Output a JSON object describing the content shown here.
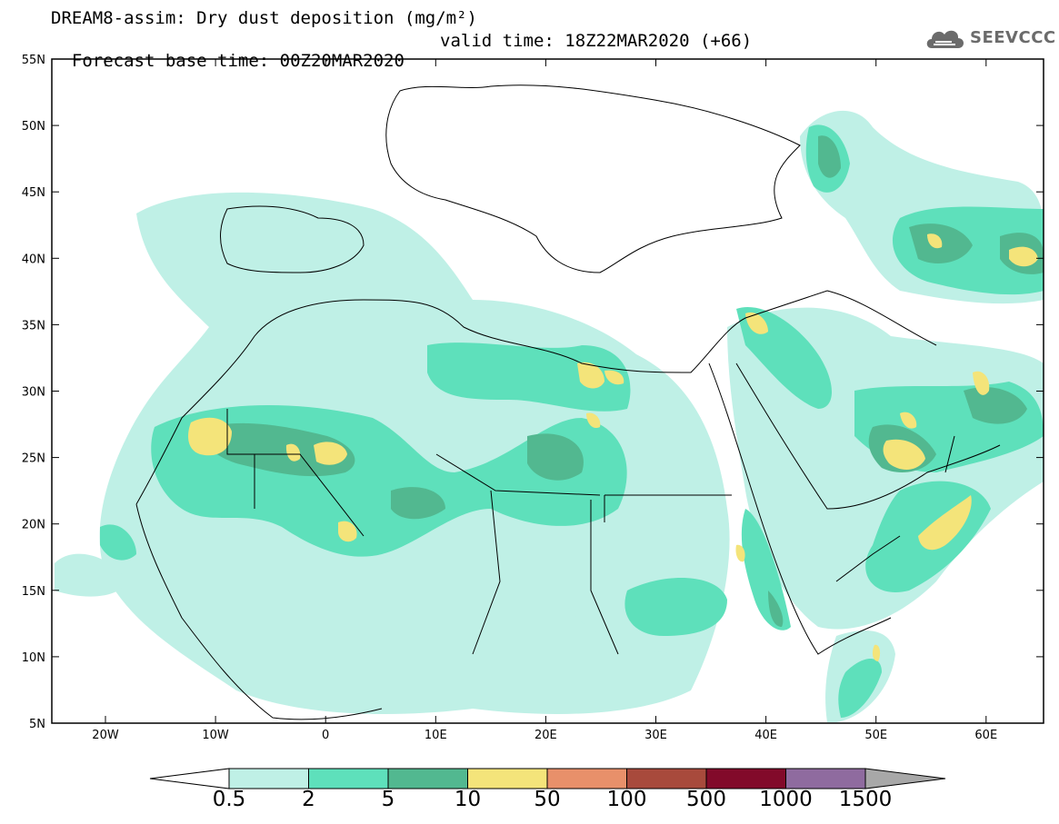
{
  "header": {
    "title_line1": "DREAM8-assim: Dry dust deposition (mg/m²)",
    "base_time": "Forecast base time: 00Z20MAR2020",
    "valid_time": "valid time: 18Z22MAR2020 (+66)"
  },
  "logo": {
    "text": "SEEVCCC",
    "icon": "cloud-icon"
  },
  "map": {
    "lat_labels": [
      "55N",
      "50N",
      "45N",
      "40N",
      "35N",
      "30N",
      "25N",
      "20N",
      "15N",
      "10N",
      "5N"
    ],
    "lon_labels": [
      "20W",
      "10W",
      "0",
      "10E",
      "20E",
      "30E",
      "40E",
      "50E",
      "60E"
    ]
  },
  "colorbar": {
    "labels": [
      "0.5",
      "2",
      "5",
      "10",
      "50",
      "100",
      "500",
      "1000",
      "1500"
    ],
    "colors": [
      "#bff0e6",
      "#5ee0bb",
      "#52b890",
      "#f4e47a",
      "#e8906a",
      "#a84a3c",
      "#820a2a",
      "#8f6b9f"
    ],
    "under_color": "#ffffff",
    "over_color": "#a8a8a8"
  }
}
